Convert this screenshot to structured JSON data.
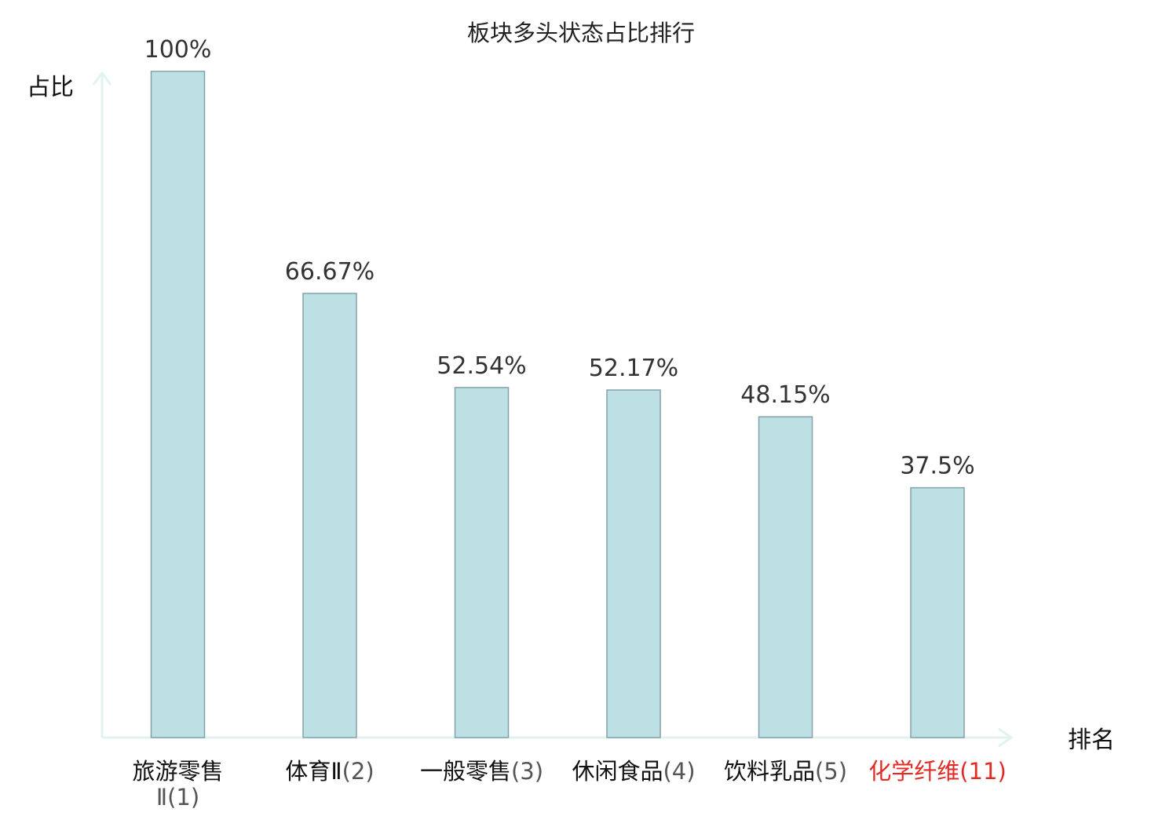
{
  "chart_data": {
    "type": "bar",
    "title": "板块多头状态占比排行",
    "xlabel": "排名",
    "ylabel": "占比",
    "ylim": [
      0,
      100
    ],
    "categories": [
      {
        "name": "旅游零售Ⅱ",
        "rank": "(1)",
        "highlight": false
      },
      {
        "name": "体育Ⅱ",
        "rank": "(2)",
        "highlight": false
      },
      {
        "name": "一般零售",
        "rank": "(3)",
        "highlight": false
      },
      {
        "name": "休闲食品",
        "rank": "(4)",
        "highlight": false
      },
      {
        "name": "饮料乳品",
        "rank": "(5)",
        "highlight": false
      },
      {
        "name": "化学纤维",
        "rank": "(11)",
        "highlight": true
      }
    ],
    "values": [
      100,
      66.67,
      52.54,
      52.17,
      48.15,
      37.5
    ],
    "value_labels": [
      "100%",
      "66.67%",
      "52.54%",
      "52.17%",
      "48.15%",
      "37.5%"
    ],
    "grid": false,
    "colors": {
      "bar_fill": "#bce0e3",
      "bar_stroke": "#84a1a7",
      "axis": "#e0f2f1",
      "highlight": "#e32b25"
    }
  }
}
